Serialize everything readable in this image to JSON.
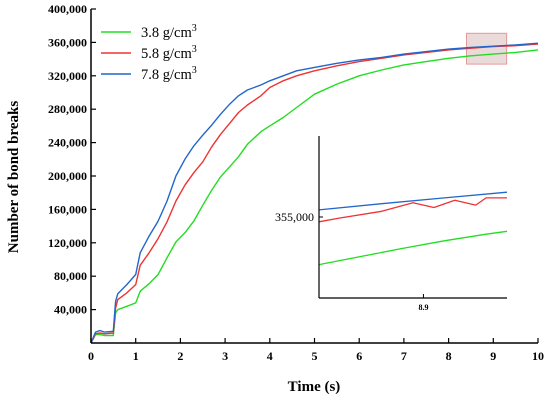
{
  "chart_data": {
    "type": "line",
    "title": "",
    "xlabel": "Time (s)",
    "ylabel": "Number of bond breaks",
    "xlim": [
      0,
      10
    ],
    "ylim": [
      0,
      400000
    ],
    "xticks": [
      "0",
      "1",
      "2",
      "3",
      "4",
      "5",
      "6",
      "7",
      "8",
      "9",
      "10"
    ],
    "yticks": [
      "40,000",
      "80,000",
      "120,000",
      "160,000",
      "200,000",
      "240,000",
      "280,000",
      "320,000",
      "360,000",
      "400,000"
    ],
    "grid": false,
    "legend_position": "top-left",
    "series": [
      {
        "name": "3.8 g/cm3",
        "color": "#22dd22",
        "x": [
          0,
          0.1,
          0.2,
          0.3,
          0.5,
          0.55,
          0.6,
          0.8,
          1.0,
          1.1,
          1.3,
          1.5,
          1.7,
          1.9,
          2.1,
          2.3,
          2.5,
          2.7,
          2.9,
          3.1,
          3.3,
          3.5,
          3.8,
          4.0,
          4.3,
          4.6,
          5.0,
          5.5,
          6.0,
          6.5,
          7.0,
          7.5,
          8.0,
          8.5,
          9.0,
          9.5,
          10.0
        ],
        "y": [
          0,
          10000,
          10000,
          9000,
          9000,
          36000,
          40000,
          44000,
          48000,
          62000,
          71000,
          82000,
          102000,
          121000,
          132000,
          146000,
          165000,
          183000,
          199000,
          211000,
          223000,
          238000,
          253000,
          260000,
          270000,
          282000,
          298000,
          310000,
          320000,
          327000,
          333000,
          337000,
          341000,
          344000,
          346000,
          348000,
          351000
        ]
      },
      {
        "name": "5.8 g/cm3",
        "color": "#ee3333",
        "x": [
          0,
          0.1,
          0.2,
          0.3,
          0.5,
          0.55,
          0.6,
          0.8,
          1.0,
          1.1,
          1.3,
          1.5,
          1.7,
          1.9,
          2.1,
          2.3,
          2.5,
          2.7,
          2.9,
          3.1,
          3.3,
          3.5,
          3.8,
          4.0,
          4.3,
          4.6,
          5.0,
          5.5,
          6.0,
          6.5,
          7.0,
          7.5,
          8.0,
          8.5,
          9.0,
          9.5,
          10.0
        ],
        "y": [
          0,
          11000,
          12000,
          11000,
          12000,
          42000,
          52000,
          60000,
          70000,
          93000,
          108000,
          125000,
          145000,
          170000,
          189000,
          204000,
          217000,
          235000,
          250000,
          263000,
          276000,
          285000,
          296000,
          306000,
          314000,
          320000,
          326000,
          332000,
          337000,
          341000,
          345000,
          348000,
          351000,
          353000,
          355000,
          356000,
          358000
        ]
      },
      {
        "name": "7.8 g/cm3",
        "color": "#2266cc",
        "x": [
          0,
          0.1,
          0.2,
          0.3,
          0.5,
          0.55,
          0.6,
          0.8,
          1.0,
          1.1,
          1.3,
          1.5,
          1.7,
          1.9,
          2.1,
          2.3,
          2.5,
          2.7,
          2.9,
          3.1,
          3.3,
          3.5,
          3.8,
          4.0,
          4.3,
          4.6,
          5.0,
          5.5,
          6.0,
          6.5,
          7.0,
          7.5,
          8.0,
          8.5,
          9.0,
          9.5,
          10.0
        ],
        "y": [
          0,
          13000,
          15000,
          13000,
          14000,
          50000,
          59000,
          70000,
          82000,
          108000,
          128000,
          146000,
          170000,
          200000,
          220000,
          236000,
          249000,
          261000,
          274000,
          286000,
          296000,
          303000,
          309000,
          314000,
          320000,
          326000,
          330000,
          335000,
          339000,
          342000,
          346000,
          349000,
          352000,
          354000,
          355500,
          357000,
          359000
        ]
      }
    ],
    "highlight_region": {
      "x": [
        8.4,
        9.3
      ],
      "y": [
        334000,
        371000
      ]
    },
    "inset": {
      "xticks": [
        "8.9"
      ],
      "x_tick_value": 8.9,
      "yticks": [
        "355,000"
      ],
      "y_tick_value": 355000,
      "xlim": [
        8.4,
        9.3
      ],
      "ylim": [
        338000,
        372000
      ],
      "series": [
        {
          "name": "3.8 g/cm3",
          "color": "#22dd22",
          "x": [
            8.4,
            8.6,
            8.8,
            9.0,
            9.2,
            9.3
          ],
          "y": [
            345000,
            346700,
            348400,
            350000,
            351400,
            352000
          ]
        },
        {
          "name": "5.8 g/cm3",
          "color": "#ee3333",
          "x": [
            8.4,
            8.5,
            8.7,
            8.85,
            8.95,
            9.05,
            9.15,
            9.2,
            9.3
          ],
          "y": [
            354000,
            354800,
            356200,
            358000,
            357000,
            358500,
            357500,
            359000,
            359000
          ]
        },
        {
          "name": "7.8 g/cm3",
          "color": "#2266cc",
          "x": [
            8.4,
            8.7,
            9.0,
            9.3
          ],
          "y": [
            356500,
            357800,
            359000,
            360200
          ]
        }
      ]
    }
  }
}
